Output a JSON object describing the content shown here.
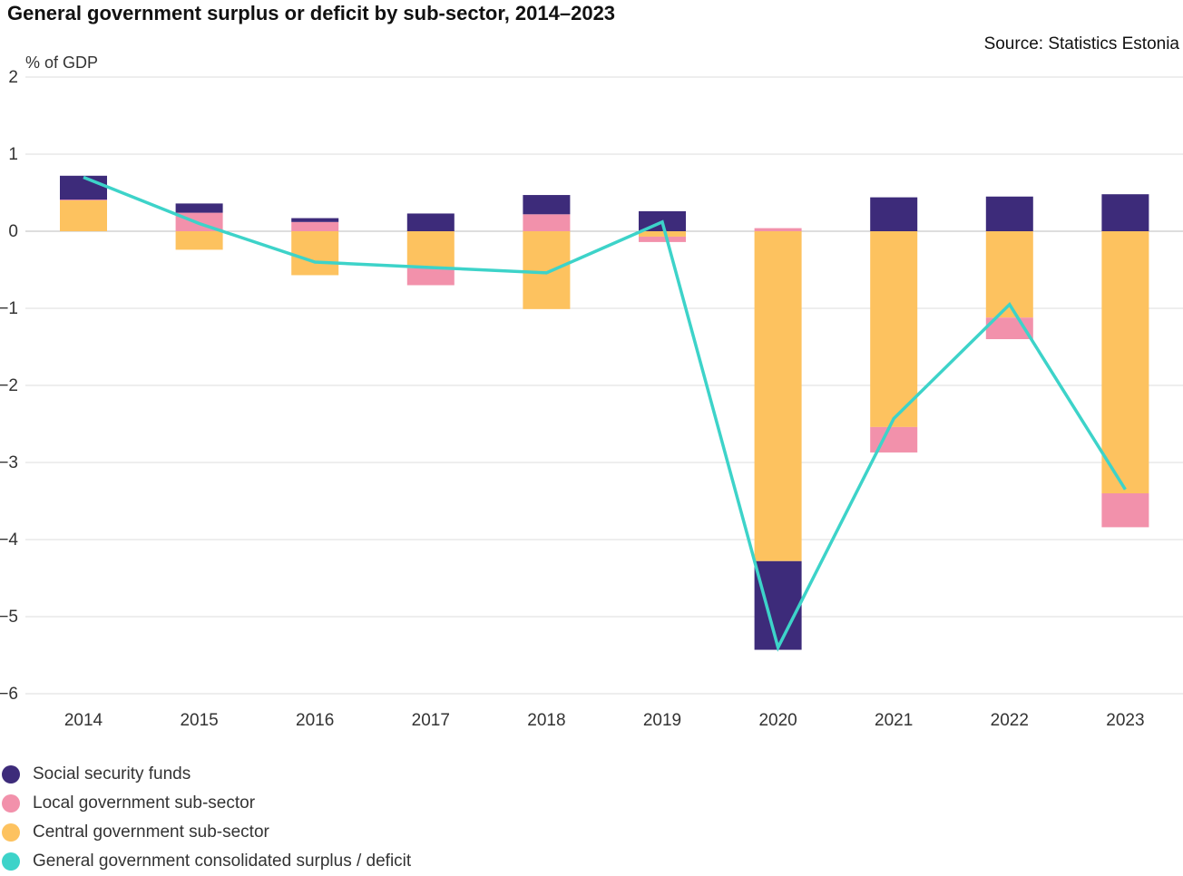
{
  "title": "General government surplus or deficit by sub-sector, 2014–2023",
  "source": "Source: Statistics Estonia",
  "chart_data": {
    "type": "bar",
    "stacked": true,
    "title": "General government surplus or deficit by sub-sector, 2014–2023",
    "ylabel": "% of GDP",
    "xlabel": "",
    "ylim": [
      -6,
      2
    ],
    "yticks": [
      "−6",
      "−5",
      "−4",
      "−3",
      "−2",
      "−1",
      "0",
      "1",
      "2"
    ],
    "ytick_values": [
      -6,
      -5,
      -4,
      -3,
      -2,
      -1,
      0,
      1,
      2
    ],
    "grid": true,
    "legend_position": "bottom-left",
    "categories": [
      "2014",
      "2015",
      "2016",
      "2017",
      "2018",
      "2019",
      "2020",
      "2021",
      "2022",
      "2023"
    ],
    "series": [
      {
        "name": "Social security funds",
        "type": "bar",
        "color": "#3d2b7a",
        "values": [
          0.31,
          0.12,
          0.05,
          0.23,
          0.25,
          0.26,
          -1.15,
          0.44,
          0.45,
          0.48
        ]
      },
      {
        "name": "Local government sub-sector",
        "type": "bar",
        "color": "#f291ab",
        "values": [
          0.01,
          0.24,
          0.12,
          -0.22,
          0.22,
          -0.07,
          0.04,
          -0.33,
          -0.28,
          -0.44
        ]
      },
      {
        "name": "Central government sub-sector",
        "type": "bar",
        "color": "#fdc25f",
        "values": [
          0.4,
          -0.24,
          -0.57,
          -0.48,
          -1.01,
          -0.07,
          -4.28,
          -2.54,
          -1.12,
          -3.4
        ]
      },
      {
        "name": "General government consolidated surplus / deficit",
        "type": "line",
        "color": "#3dd3c9",
        "values": [
          0.7,
          0.1,
          -0.4,
          -0.47,
          -0.54,
          0.12,
          -5.4,
          -2.43,
          -0.95,
          -3.35
        ]
      }
    ]
  }
}
